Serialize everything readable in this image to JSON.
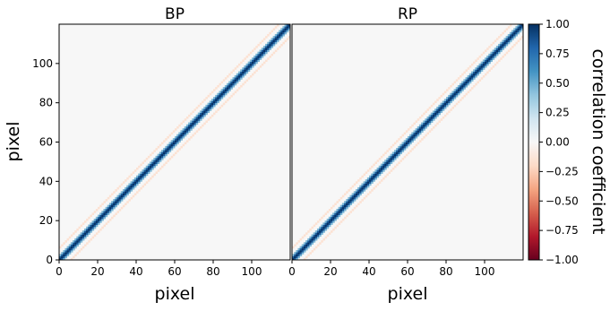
{
  "chart_data": {
    "type": "heatmap",
    "panels": [
      {
        "title": "BP",
        "xlabel": "pixel",
        "ylabel": "pixel"
      },
      {
        "title": "RP",
        "xlabel": "pixel",
        "ylabel": ""
      }
    ],
    "grid_size": 120,
    "xlim": [
      0,
      120
    ],
    "ylim": [
      0,
      120
    ],
    "x_ticks": [
      0,
      20,
      40,
      60,
      80,
      100
    ],
    "y_ticks": [
      0,
      20,
      40,
      60,
      80,
      100
    ],
    "colorbar": {
      "label": "correlation coefficient",
      "range": [
        -1.0,
        1.0
      ],
      "ticks": [
        "1.00",
        "0.75",
        "0.50",
        "0.25",
        "0.00",
        "−0.25",
        "−0.50",
        "−0.75",
        "−1.00"
      ],
      "colormap": [
        "#67001f",
        "#b2182b",
        "#d6604d",
        "#f4a582",
        "#fddbc7",
        "#f7f7f7",
        "#d1e5f0",
        "#92c5de",
        "#4393c3",
        "#2166ac",
        "#053061"
      ]
    },
    "structure": {
      "diagonal_value": 1.0,
      "adjacent_offset_values": [
        0.85,
        0.45
      ],
      "side_band_offset": 6,
      "side_band_value": -0.15,
      "background_value": 0.0
    }
  }
}
